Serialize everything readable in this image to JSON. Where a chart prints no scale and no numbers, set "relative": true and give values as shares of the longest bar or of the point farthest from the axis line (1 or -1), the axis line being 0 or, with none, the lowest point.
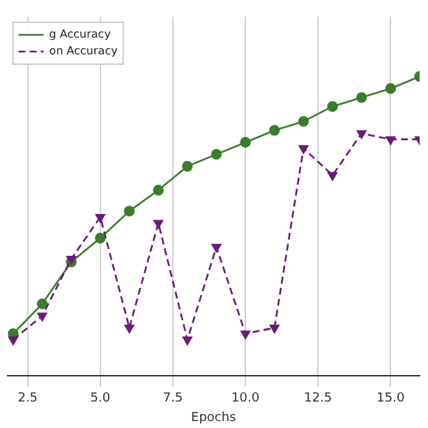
{
  "chart_data": {
    "type": "line",
    "xlabel": "Epochs",
    "relative": true,
    "x": [
      2,
      3,
      4,
      5,
      6,
      7,
      8,
      9,
      10,
      11,
      12,
      13,
      14,
      15,
      16
    ],
    "xlim": [
      1.8,
      16
    ],
    "xticks": [
      {
        "value": 2.5,
        "label": "2.5"
      },
      {
        "value": 5,
        "label": "5.0"
      },
      {
        "value": 7.5,
        "label": "7.5"
      },
      {
        "value": 10,
        "label": "10.0"
      },
      {
        "value": 12.5,
        "label": "12.5"
      },
      {
        "value": 15,
        "label": "15.0"
      }
    ],
    "grid": true,
    "legend": "top left",
    "series": [
      {
        "name": "g Accuracy",
        "color": "#3a7d2c",
        "marker": "circle",
        "line_style": "solid",
        "values": [
          0.14,
          0.24,
          0.38,
          0.46,
          0.55,
          0.62,
          0.7,
          0.74,
          0.78,
          0.82,
          0.85,
          0.9,
          0.93,
          0.96,
          1
        ]
      },
      {
        "name": "on Accuracy",
        "color": "#6a1b7a",
        "marker": "triangle",
        "line_style": "dashed",
        "values": [
          0.12,
          0.2,
          0.39,
          0.53,
          0.16,
          0.51,
          0.12,
          0.43,
          0.14,
          0.16,
          0.76,
          0.67,
          0.81,
          0.79,
          0.79
        ]
      }
    ]
  }
}
